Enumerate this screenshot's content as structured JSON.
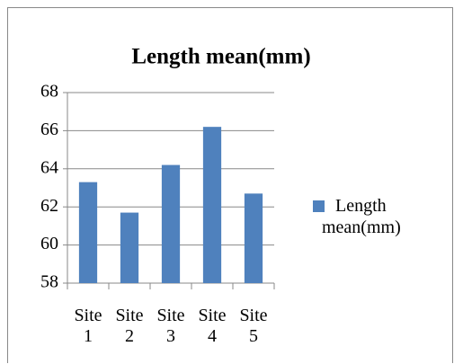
{
  "chart_data": {
    "type": "bar",
    "title": "Length mean(mm)",
    "categories": [
      "Site 1",
      "Site 2",
      "Site 3",
      "Site 4",
      "Site 5"
    ],
    "series": [
      {
        "name": "Length mean(mm)",
        "color": "#4f81bd",
        "values": [
          63.3,
          61.7,
          64.2,
          66.2,
          62.7
        ]
      }
    ],
    "ylim": [
      58,
      68
    ],
    "yticks": [
      58,
      60,
      62,
      64,
      66,
      68
    ],
    "grid": true,
    "legend": "right"
  }
}
